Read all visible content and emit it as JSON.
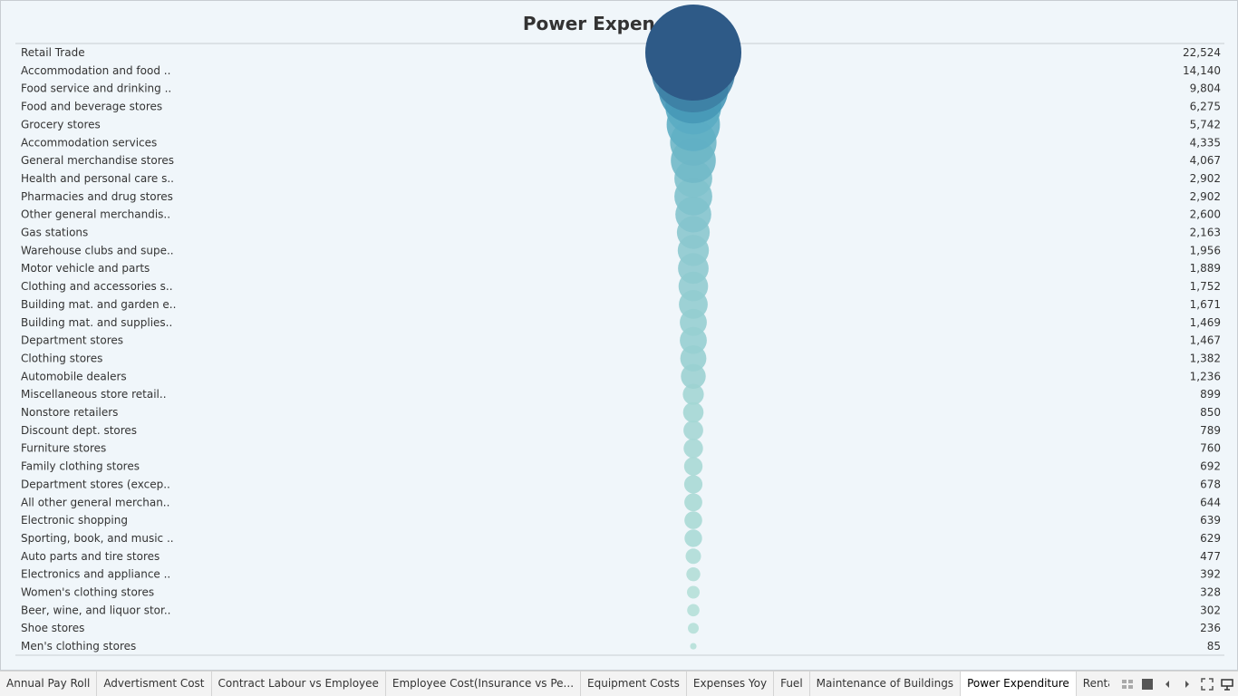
{
  "title": "Power Expenditure",
  "tabs": [
    {
      "label": "Annual Pay Roll",
      "active": false
    },
    {
      "label": "Advertisment Cost",
      "active": false
    },
    {
      "label": "Contract Labour vs Employee",
      "active": false
    },
    {
      "label": "Employee Cost(Insurance vs Pe...",
      "active": false
    },
    {
      "label": "Equipment Costs",
      "active": false
    },
    {
      "label": "Expenses Yoy",
      "active": false
    },
    {
      "label": "Fuel",
      "active": false
    },
    {
      "label": "Maintenance of Buildings",
      "active": false
    },
    {
      "label": "Power Expenditure",
      "active": true
    },
    {
      "label": "Rental Payment",
      "active": false
    }
  ],
  "tab_tools": [
    "grid-view-icon",
    "single-view-icon",
    "previous-icon",
    "next-icon",
    "fullscreen-icon",
    "present-icon"
  ],
  "colors": {
    "bubble_high": "#2e5a87",
    "bubble_mid": "#4aa3bf",
    "bubble_low": "#b5e0d8"
  },
  "chart_data": {
    "type": "bubble",
    "title": "Power Expenditure",
    "categories": [
      "Retail Trade",
      "Accommodation and food ..",
      "Food service and drinking ..",
      "Food and beverage stores",
      "Grocery stores",
      "Accommodation services",
      "General merchandise stores",
      "Health and personal care s..",
      "Pharmacies and drug stores",
      "Other general merchandis..",
      "Gas stations",
      "Warehouse clubs and supe..",
      "Motor vehicle and parts",
      "Clothing and accessories s..",
      "Building mat. and garden e..",
      "Building mat. and supplies..",
      "Department stores",
      "Clothing stores",
      "Automobile dealers",
      "Miscellaneous store retail..",
      "Nonstore retailers",
      "Discount dept. stores",
      "Furniture stores",
      "Family clothing stores",
      "Department stores (excep..",
      "All other general merchan..",
      "Electronic shopping",
      "Sporting, book, and  music ..",
      "Auto parts and tire stores",
      "Electronics and appliance ..",
      "Women's clothing stores",
      "Beer, wine, and liquor stor..",
      "Shoe stores",
      "Men's clothing stores"
    ],
    "values": [
      22524,
      14140,
      9804,
      6275,
      5742,
      4335,
      4067,
      2902,
      2902,
      2600,
      2163,
      1956,
      1889,
      1752,
      1671,
      1469,
      1467,
      1382,
      1236,
      899,
      850,
      789,
      760,
      692,
      678,
      644,
      639,
      629,
      477,
      392,
      328,
      302,
      236,
      85
    ],
    "value_labels": [
      "22,524",
      "14,140",
      "9,804",
      "6,275",
      "5,742",
      "4,335",
      "4,067",
      "2,902",
      "2,902",
      "2,600",
      "2,163",
      "1,956",
      "1,889",
      "1,752",
      "1,671",
      "1,469",
      "1,467",
      "1,382",
      "1,236",
      "899",
      "850",
      "789",
      "760",
      "692",
      "678",
      "644",
      "639",
      "629",
      "477",
      "392",
      "328",
      "302",
      "236",
      "85"
    ],
    "grid": false,
    "legend": "none"
  }
}
